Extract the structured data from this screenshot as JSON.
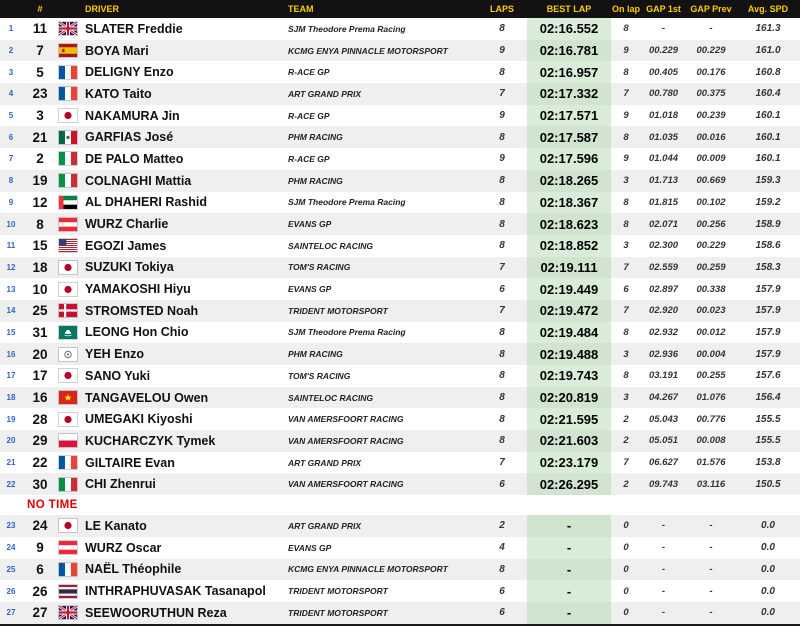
{
  "colors": {
    "header_bg": "#121212",
    "header_text": "#ffcc00",
    "position_number": "#2f63c9",
    "row_alt_bg": "#efefef",
    "best_lap_column_bg": "#d9ecd7",
    "no_time_red": "#e00000"
  },
  "headers": {
    "pos": "",
    "num": "#",
    "driver": "DRIVER",
    "team": "TEAM",
    "laps": "LAPS",
    "best": "BEST LAP",
    "onlap": "On lap",
    "gap1": "GAP 1st",
    "gapprev": "GAP Prev",
    "avg": "Avg. SPD"
  },
  "no_time_label": "NO TIME",
  "rows": [
    {
      "pos": "1",
      "num": "11",
      "flag": "gb",
      "driver": "SLATER Freddie",
      "team": "SJM Theodore Prema Racing",
      "laps": "8",
      "best": "02:16.552",
      "onlap": "8",
      "gap1": "-",
      "gapprev": "-",
      "avg": "161.3"
    },
    {
      "pos": "2",
      "num": "7",
      "flag": "es",
      "driver": "BOYA Mari",
      "team": "KCMG ENYA PINNACLE MOTORSPORT",
      "laps": "9",
      "best": "02:16.781",
      "onlap": "9",
      "gap1": "00.229",
      "gapprev": "00.229",
      "avg": "161.0"
    },
    {
      "pos": "3",
      "num": "5",
      "flag": "fr",
      "driver": "DELIGNY Enzo",
      "team": "R-ACE GP",
      "laps": "8",
      "best": "02:16.957",
      "onlap": "8",
      "gap1": "00.405",
      "gapprev": "00.176",
      "avg": "160.8"
    },
    {
      "pos": "4",
      "num": "23",
      "flag": "fr",
      "driver": "KATO Taito",
      "team": "ART GRAND PRIX",
      "laps": "7",
      "best": "02:17.332",
      "onlap": "7",
      "gap1": "00.780",
      "gapprev": "00.375",
      "avg": "160.4"
    },
    {
      "pos": "5",
      "num": "3",
      "flag": "jp",
      "driver": "NAKAMURA Jin",
      "team": "R-ACE GP",
      "laps": "9",
      "best": "02:17.571",
      "onlap": "9",
      "gap1": "01.018",
      "gapprev": "00.239",
      "avg": "160.1"
    },
    {
      "pos": "6",
      "num": "21",
      "flag": "mx",
      "driver": "GARFIAS José",
      "team": "PHM RACING",
      "laps": "8",
      "best": "02:17.587",
      "onlap": "8",
      "gap1": "01.035",
      "gapprev": "00.016",
      "avg": "160.1"
    },
    {
      "pos": "7",
      "num": "2",
      "flag": "it",
      "driver": "DE PALO Matteo",
      "team": "R-ACE GP",
      "laps": "9",
      "best": "02:17.596",
      "onlap": "9",
      "gap1": "01.044",
      "gapprev": "00.009",
      "avg": "160.1"
    },
    {
      "pos": "8",
      "num": "19",
      "flag": "it",
      "driver": "COLNAGHI Mattia",
      "team": "PHM RACING",
      "laps": "8",
      "best": "02:18.265",
      "onlap": "3",
      "gap1": "01.713",
      "gapprev": "00.669",
      "avg": "159.3"
    },
    {
      "pos": "9",
      "num": "12",
      "flag": "ae",
      "driver": "AL DHAHERI Rashid",
      "team": "SJM Theodore Prema Racing",
      "laps": "8",
      "best": "02:18.367",
      "onlap": "8",
      "gap1": "01.815",
      "gapprev": "00.102",
      "avg": "159.2"
    },
    {
      "pos": "10",
      "num": "8",
      "flag": "at",
      "driver": "WURZ Charlie",
      "team": "EVANS GP",
      "laps": "8",
      "best": "02:18.623",
      "onlap": "8",
      "gap1": "02.071",
      "gapprev": "00.256",
      "avg": "158.9"
    },
    {
      "pos": "11",
      "num": "15",
      "flag": "us",
      "driver": "EGOZI James",
      "team": "SAINTELOC RACING",
      "laps": "8",
      "best": "02:18.852",
      "onlap": "3",
      "gap1": "02.300",
      "gapprev": "00.229",
      "avg": "158.6"
    },
    {
      "pos": "12",
      "num": "18",
      "flag": "jp",
      "driver": "SUZUKI Tokiya",
      "team": "TOM'S RACING",
      "laps": "7",
      "best": "02:19.111",
      "onlap": "7",
      "gap1": "02.559",
      "gapprev": "00.259",
      "avg": "158.3"
    },
    {
      "pos": "13",
      "num": "10",
      "flag": "jp",
      "driver": "YAMAKOSHI Hiyu",
      "team": "EVANS GP",
      "laps": "6",
      "best": "02:19.449",
      "onlap": "6",
      "gap1": "02.897",
      "gapprev": "00.338",
      "avg": "157.9"
    },
    {
      "pos": "14",
      "num": "25",
      "flag": "dk",
      "driver": "STROMSTED Noah",
      "team": "TRIDENT MOTORSPORT",
      "laps": "7",
      "best": "02:19.472",
      "onlap": "7",
      "gap1": "02.920",
      "gapprev": "00.023",
      "avg": "157.9"
    },
    {
      "pos": "15",
      "num": "31",
      "flag": "mo",
      "driver": "LEONG Hon Chio",
      "team": "SJM Theodore Prema Racing",
      "laps": "8",
      "best": "02:19.484",
      "onlap": "8",
      "gap1": "02.932",
      "gapprev": "00.012",
      "avg": "157.9"
    },
    {
      "pos": "16",
      "num": "20",
      "flag": "tpe",
      "driver": "YEH Enzo",
      "team": "PHM RACING",
      "laps": "8",
      "best": "02:19.488",
      "onlap": "3",
      "gap1": "02.936",
      "gapprev": "00.004",
      "avg": "157.9"
    },
    {
      "pos": "17",
      "num": "17",
      "flag": "jp",
      "driver": "SANO Yuki",
      "team": "TOM'S RACING",
      "laps": "8",
      "best": "02:19.743",
      "onlap": "8",
      "gap1": "03.191",
      "gapprev": "00.255",
      "avg": "157.6"
    },
    {
      "pos": "18",
      "num": "16",
      "flag": "vn",
      "driver": "TANGAVELOU Owen",
      "team": "SAINTELOC RACING",
      "laps": "8",
      "best": "02:20.819",
      "onlap": "3",
      "gap1": "04.267",
      "gapprev": "01.076",
      "avg": "156.4"
    },
    {
      "pos": "19",
      "num": "28",
      "flag": "jp",
      "driver": "UMEGAKI Kiyoshi",
      "team": "VAN AMERSFOORT RACING",
      "laps": "8",
      "best": "02:21.595",
      "onlap": "2",
      "gap1": "05.043",
      "gapprev": "00.776",
      "avg": "155.5"
    },
    {
      "pos": "20",
      "num": "29",
      "flag": "pl",
      "driver": "KUCHARCZYK Tymek",
      "team": "VAN AMERSFOORT RACING",
      "laps": "8",
      "best": "02:21.603",
      "onlap": "2",
      "gap1": "05.051",
      "gapprev": "00.008",
      "avg": "155.5"
    },
    {
      "pos": "21",
      "num": "22",
      "flag": "fr",
      "driver": "GILTAIRE Evan",
      "team": "ART GRAND PRIX",
      "laps": "7",
      "best": "02:23.179",
      "onlap": "7",
      "gap1": "06.627",
      "gapprev": "01.576",
      "avg": "153.8"
    },
    {
      "pos": "22",
      "num": "30",
      "flag": "it",
      "driver": "CHI Zhenrui",
      "team": "VAN AMERSFOORT RACING",
      "laps": "6",
      "best": "02:26.295",
      "onlap": "2",
      "gap1": "09.743",
      "gapprev": "03.116",
      "avg": "150.5"
    }
  ],
  "no_time_rows": [
    {
      "pos": "23",
      "num": "24",
      "flag": "jp",
      "driver": "LE Kanato",
      "team": "ART GRAND PRIX",
      "laps": "2",
      "best": "-",
      "onlap": "0",
      "gap1": "-",
      "gapprev": "-",
      "avg": "0.0"
    },
    {
      "pos": "24",
      "num": "9",
      "flag": "at",
      "driver": "WURZ Oscar",
      "team": "EVANS GP",
      "laps": "4",
      "best": "-",
      "onlap": "0",
      "gap1": "-",
      "gapprev": "-",
      "avg": "0.0"
    },
    {
      "pos": "25",
      "num": "6",
      "flag": "fr",
      "driver": "NAËL Théophile",
      "team": "KCMG ENYA PINNACLE MOTORSPORT",
      "laps": "8",
      "best": "-",
      "onlap": "0",
      "gap1": "-",
      "gapprev": "-",
      "avg": "0.0"
    },
    {
      "pos": "26",
      "num": "26",
      "flag": "th",
      "driver": "INTHRAPHUVASAK Tasanapol",
      "team": "TRIDENT MOTORSPORT",
      "laps": "6",
      "best": "-",
      "onlap": "0",
      "gap1": "-",
      "gapprev": "-",
      "avg": "0.0"
    },
    {
      "pos": "27",
      "num": "27",
      "flag": "gb",
      "driver": "SEEWOORUTHUN Reza",
      "team": "TRIDENT MOTORSPORT",
      "laps": "6",
      "best": "-",
      "onlap": "0",
      "gap1": "-",
      "gapprev": "-",
      "avg": "0.0"
    }
  ]
}
